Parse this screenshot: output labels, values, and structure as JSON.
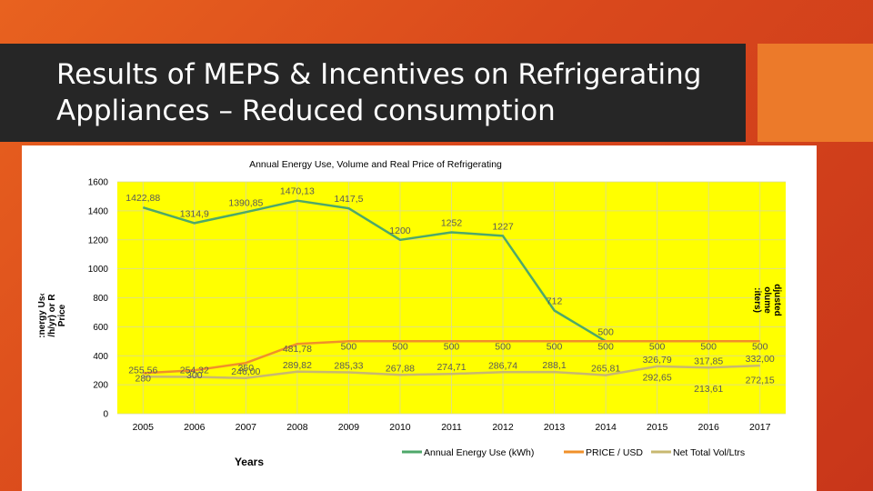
{
  "slide": {
    "title_line1": "Results of MEPS & Incentives on Refrigerating",
    "title_line2": "Appliances – Reduced consumption"
  },
  "colors": {
    "plot_bg": "#ffff00",
    "energy": "#4ea86a",
    "price": "#f0902a",
    "volume": "#c8b870"
  },
  "chart_data": {
    "type": "line",
    "title": "Annual Energy Use, Volume and Real Price of Refrigerating",
    "xlabel": "Years",
    "ylabel": "Energy Use (kWh/yr) or Real Price",
    "ylabel_lines": [
      ":nergy Us‹",
      "/h/yr) or R",
      "Price"
    ],
    "y2label": "Adjusted Volume (Liters)",
    "y2label_lines": [
      "djusted",
      "olume",
      ":iters)"
    ],
    "ylim": [
      0,
      1600
    ],
    "yticks": [
      0,
      200,
      400,
      600,
      800,
      1000,
      1200,
      1400,
      1600
    ],
    "categories": [
      "2005",
      "2006",
      "2007",
      "2008",
      "2009",
      "2010",
      "2011",
      "2012",
      "2013",
      "2014",
      "2015",
      "2016",
      "2017"
    ],
    "grid": true,
    "legend": "bottom-right",
    "series": [
      {
        "name": "Annual Energy Use (kWh)",
        "values": [
          1422.88,
          1314.9,
          1390.85,
          1470.13,
          1417.5,
          1200,
          1252,
          1227,
          712,
          500,
          null,
          null,
          null
        ],
        "labels": [
          "1422,88",
          "1314,9",
          "1390,85",
          "1470,13",
          "1417,5",
          "1200",
          "1252",
          "1227",
          "712",
          "500",
          "",
          "",
          ""
        ]
      },
      {
        "name": "PRICE / USD",
        "values": [
          280,
          300,
          350,
          481.78,
          500,
          500,
          500,
          500,
          500,
          500,
          500,
          500,
          500
        ],
        "labels": [
          "280",
          "300",
          "350",
          "481,78",
          "500",
          "500",
          "500",
          "500",
          "500",
          "500",
          "500",
          "500",
          "500"
        ]
      },
      {
        "name": "Net Total Vol/Ltrs",
        "values": [
          255.56,
          254.32,
          246.0,
          289.82,
          285.33,
          267.88,
          274.71,
          286.74,
          288.1,
          265.81,
          326.79,
          317.85,
          332.0
        ],
        "labels": [
          "255,56",
          "254,32",
          "246,00",
          "289,82",
          "285,33",
          "267,88",
          "274,71",
          "286,74",
          "288,1",
          "265,81",
          "326,79",
          "317,85",
          "332,00"
        ]
      },
      {
        "name": "",
        "values": [
          null,
          null,
          null,
          null,
          null,
          null,
          null,
          null,
          null,
          null,
          292.65,
          213.61,
          272.15
        ],
        "labels": [
          "",
          "",
          "",
          "",
          "",
          "",
          "",
          "",
          "",
          "",
          "292,65",
          "213,61",
          "272,15"
        ]
      }
    ]
  }
}
